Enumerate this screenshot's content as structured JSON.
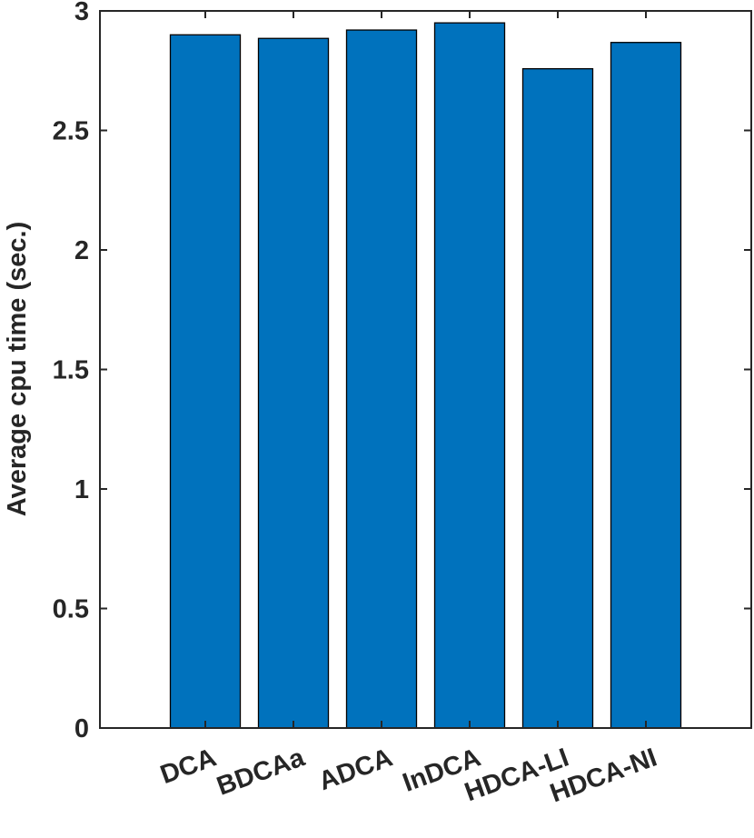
{
  "chart_data": {
    "type": "bar",
    "title": "",
    "xlabel": "",
    "ylabel": "Average cpu time (sec.)",
    "categories": [
      "DCA",
      "BDCAa",
      "ADCA",
      "InDCA",
      "HDCA-LI",
      "HDCA-NI"
    ],
    "values": [
      2.9,
      2.885,
      2.92,
      2.95,
      2.758,
      2.868
    ],
    "ylim": [
      0,
      3
    ],
    "yticks": [
      "0",
      "0.5",
      "1",
      "1.5",
      "2",
      "2.5",
      "3"
    ],
    "grid": false,
    "legend": "none",
    "bar_color": "#0072BD",
    "edge_color": "#000000"
  }
}
